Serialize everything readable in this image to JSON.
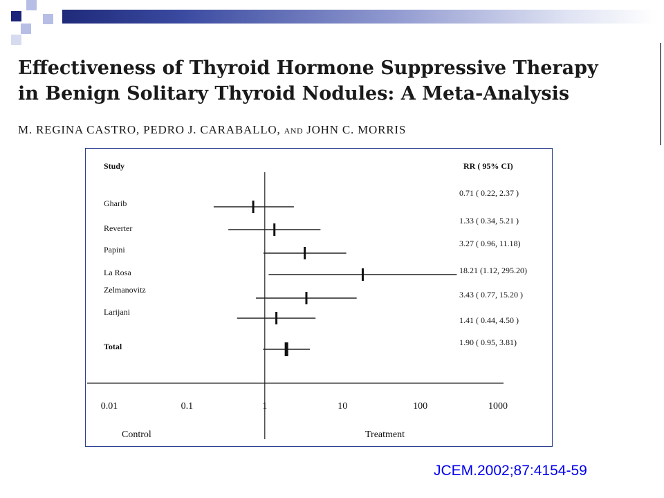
{
  "slide": {
    "title_line1": "Effectiveness of Thyroid Hormone Suppressive Therapy",
    "title_line2": "in Benign Solitary Thyroid Nodules: A Meta-Analysis",
    "authors_part1": "M. REGINA CASTRO, PEDRO J. CARABALLO,",
    "authors_and": "AND",
    "authors_part2": "JOHN C. MORRIS",
    "citation": "JCEM.2002;87:4154-59",
    "colors": {
      "accent_dark": "#1c237a",
      "accent_light": "#b6bee6",
      "frame": "#2c3e90",
      "citation": "#0000ee"
    }
  },
  "chart_data": {
    "type": "forest",
    "study_header": "Study",
    "rr_header": "RR ( 95% CI)",
    "x_scale": "log",
    "xlim": [
      0.01,
      1000
    ],
    "x_ticks": [
      0.01,
      0.1,
      1,
      10,
      100,
      1000
    ],
    "x_tick_labels": [
      "0.01",
      "0.1",
      "1",
      "10",
      "100",
      "1000"
    ],
    "left_label": "Control",
    "right_label": "Treatment",
    "reference_line": 1,
    "studies": [
      {
        "name": "Gharib",
        "rr": 0.71,
        "lo": 0.22,
        "hi": 2.37,
        "label": "0.71 ( 0.22, 2.37 )"
      },
      {
        "name": "Reverter",
        "rr": 1.33,
        "lo": 0.34,
        "hi": 5.21,
        "label": "1.33 ( 0.34, 5.21 )"
      },
      {
        "name": "Papini",
        "rr": 3.27,
        "lo": 0.96,
        "hi": 11.18,
        "label": "3.27 ( 0.96, 11.18)"
      },
      {
        "name": "La Rosa",
        "rr": 18.21,
        "lo": 1.12,
        "hi": 295.2,
        "label": "18.21 (1.12, 295.20)"
      },
      {
        "name": "Zelmanovitz",
        "rr": 3.43,
        "lo": 0.77,
        "hi": 15.2,
        "label": "3.43 ( 0.77, 15.20 )"
      },
      {
        "name": "Larijani",
        "rr": 1.41,
        "lo": 0.44,
        "hi": 4.5,
        "label": "1.41 ( 0.44, 4.50 )"
      }
    ],
    "total": {
      "name": "Total",
      "rr": 1.9,
      "lo": 0.95,
      "hi": 3.81,
      "label": "1.90 ( 0.95, 3.81)"
    }
  }
}
